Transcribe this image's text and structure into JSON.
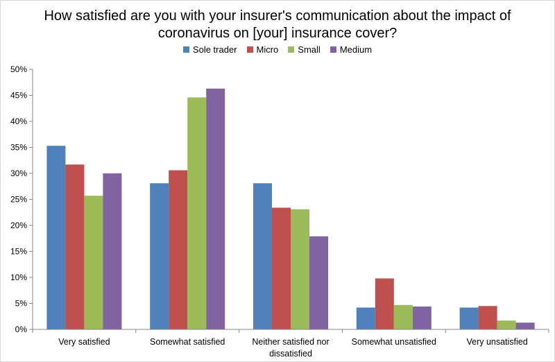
{
  "chart_data": {
    "type": "bar",
    "title_lines": [
      "How satisfied are you with your insurer's communication about the impact of",
      "coronavirus on [your] insurance cover?"
    ],
    "categories": [
      [
        "Very satisfied"
      ],
      [
        "Somewhat satisfied"
      ],
      [
        "Neither satisfied nor",
        "dissatisfied"
      ],
      [
        "Somewhat unsatisfied"
      ],
      [
        "Very unsatisfied"
      ]
    ],
    "series": [
      {
        "name": "Sole trader",
        "color": "#4F81BD",
        "values": [
          35.3,
          28.1,
          28.1,
          4.2,
          4.2
        ]
      },
      {
        "name": "Micro",
        "color": "#C0504D",
        "values": [
          31.7,
          30.6,
          23.4,
          9.8,
          4.5
        ]
      },
      {
        "name": "Small",
        "color": "#9BBB59",
        "values": [
          25.7,
          44.6,
          23.1,
          4.7,
          1.7
        ]
      },
      {
        "name": "Medium",
        "color": "#8064A2",
        "values": [
          30.0,
          46.3,
          17.9,
          4.4,
          1.3
        ]
      }
    ],
    "yticks": [
      "0%",
      "5%",
      "10%",
      "15%",
      "20%",
      "25%",
      "30%",
      "35%",
      "40%",
      "45%",
      "50%"
    ],
    "ylim": [
      0,
      50
    ],
    "legend_position": "top"
  }
}
